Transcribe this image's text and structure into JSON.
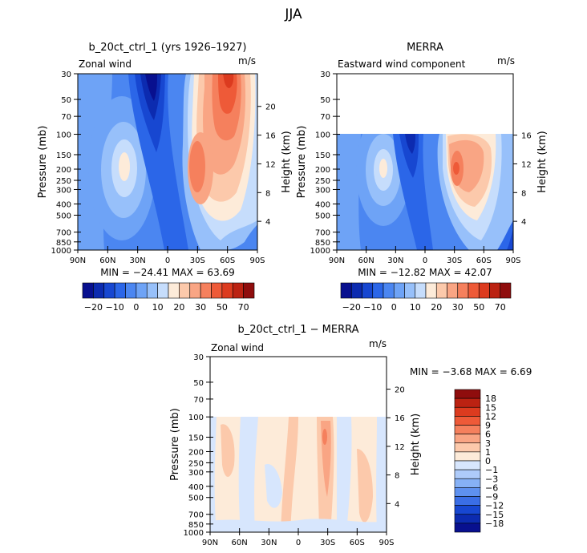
{
  "title": "JJA",
  "chart_data": [
    {
      "type": "heatmap",
      "title": "b_20ct_ctrl_1 (yrs 1926–1927)",
      "left_label": "Zonal wind",
      "right_label": "m/s",
      "ylabel": "Pressure (mb)",
      "y2label": "Height (km)",
      "x_ticks": [
        "90N",
        "60N",
        "30N",
        "0",
        "30S",
        "60S",
        "90S"
      ],
      "y_ticks": [
        "30",
        "50",
        "70",
        "100",
        "150",
        "200",
        "250",
        "300",
        "400",
        "500",
        "700",
        "850",
        "1000"
      ],
      "height_ticks": [
        "20",
        "16",
        "12",
        "8",
        "4"
      ],
      "stats": "MIN = −24.41   MAX =  63.69",
      "colorbar_labels": [
        "−20",
        "−10",
        "0",
        "10",
        "20",
        "30",
        "50",
        "70"
      ]
    },
    {
      "type": "heatmap",
      "title": "MERRA",
      "left_label": "Eastward wind component",
      "right_label": "m/s",
      "ylabel": "Pressure (mb)",
      "y2label": "Height (km)",
      "x_ticks": [
        "90N",
        "60N",
        "30N",
        "0",
        "30S",
        "60S",
        "90S"
      ],
      "y_ticks": [
        "30",
        "50",
        "70",
        "100",
        "150",
        "200",
        "250",
        "300",
        "400",
        "500",
        "700",
        "850",
        "1000"
      ],
      "height_ticks": [
        "16",
        "12",
        "8",
        "4"
      ],
      "stats": "MIN = −12.82   MAX =  42.07",
      "colorbar_labels": [
        "−20",
        "−10",
        "0",
        "10",
        "20",
        "30",
        "50",
        "70"
      ]
    },
    {
      "type": "heatmap",
      "title": "b_20ct_ctrl_1 − MERRA",
      "left_label": "Zonal wind",
      "right_label": "m/s",
      "ylabel": "Pressure (mb)",
      "y2label": "Height (km)",
      "x_ticks": [
        "90N",
        "60N",
        "30N",
        "0",
        "30S",
        "60S",
        "90S"
      ],
      "y_ticks": [
        "30",
        "50",
        "70",
        "100",
        "150",
        "200",
        "250",
        "300",
        "400",
        "500",
        "700",
        "850",
        "1000"
      ],
      "height_ticks": [
        "20",
        "16",
        "12",
        "8",
        "4"
      ],
      "stats": "MIN =    −3.68   MAX =    6.69",
      "colorbar_labels": [
        "18",
        "15",
        "12",
        "9",
        "6",
        "3",
        "1",
        "0",
        "−1",
        "−3",
        "−6",
        "−9",
        "−12",
        "−15",
        "−18"
      ]
    }
  ],
  "colors": {
    "diverging_16": [
      "#08108f",
      "#0c2bb0",
      "#1747d1",
      "#2b66e8",
      "#4b86f1",
      "#6ea3f6",
      "#97c0fa",
      "#c6ddfc",
      "#fdebd9",
      "#fcc9ab",
      "#f9a584",
      "#f5805d",
      "#ee5a38",
      "#dc3b1f",
      "#bb2212",
      "#8f0d0d"
    ],
    "diff_16": [
      "#08108f",
      "#0c2bb0",
      "#1747d1",
      "#3a6ee6",
      "#5e91f0",
      "#86b1f6",
      "#aecbfa",
      "#d7e6fd",
      "#fdebd9",
      "#fcc9ab",
      "#f9a584",
      "#f5805d",
      "#ee5a38",
      "#dc3b1f",
      "#bb2212",
      "#8f0d0d"
    ]
  }
}
